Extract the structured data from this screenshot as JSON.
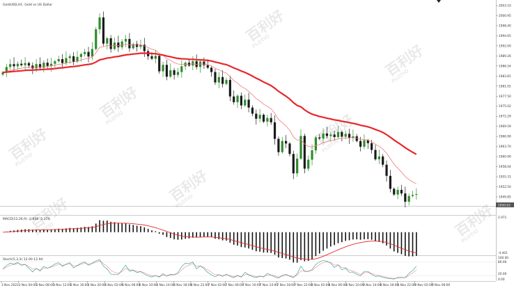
{
  "window": {
    "title": "GoldUSD,H1: Gold vs US Dollar",
    "watermark_text": "百利好",
    "watermark_logo": "PLOTIO"
  },
  "price_axis": {
    "labels": [
      "2003.10",
      "2000.95",
      "1998.40",
      "1994.65",
      "1992.00",
      "1989.26",
      "1986.54",
      "1983.81",
      "1981.05",
      "1977.50",
      "1975.02",
      "1972.29",
      "1969.59",
      "1966.90",
      "1963.70",
      "1960.90",
      "1958.04",
      "1955.31",
      "1952.50",
      "1949.85"
    ],
    "current_price": "1950.63"
  },
  "time_axis": {
    "labels": [
      "3 Nov 2023",
      "3 Nov 04:00",
      "3 Nov 08:00",
      "3 Nov 12:00",
      "3 Nov 16:00",
      "3 Nov 20:00",
      "6 Nov 02:00",
      "6 Nov 06:00",
      "6 Nov 10:00",
      "6 Nov 14:00",
      "6 Nov 18:00",
      "6 Nov 22:00",
      "7 Nov 02:00",
      "7 Nov 06:00",
      "7 Nov 10:00",
      "7 Nov 14:00",
      "7 Nov 18:00",
      "7 Nov 22:00",
      "8 Nov 02:00",
      "8 Nov 06:00",
      "8 Nov 10:00",
      "8 Nov 14:00",
      "8 Nov 18:00",
      "8 Nov 22:00",
      "9 Nov 02:00",
      "9 Nov 06:00"
    ]
  },
  "macd": {
    "label": "MACD(12,26,9) -2.838 -3.274",
    "axis_top": "2.971",
    "axis_bottom": "-4.401"
  },
  "stoch": {
    "label": "Stoch(5,3,3) 12.00 12.94",
    "axis_top": "100.00",
    "axis_80": "80.00",
    "axis_20": "20.00",
    "axis_bottom": "0.00"
  },
  "colors": {
    "bull": "#2e8b2e",
    "bear": "#1a1a1a",
    "ma_slow": "#e8262a",
    "ma_fast": "#f07a78",
    "price_marker": "#555555"
  },
  "chart_data": {
    "type": "candlestick",
    "title": "GoldUSD,H1: Gold vs US Dollar",
    "x_range": [
      "3 Nov 2023",
      "9 Nov 06:00"
    ],
    "y_range": [
      1949.85,
      2003.1
    ],
    "overlays": [
      "MA slow (thick red)",
      "MA fast (thin red)"
    ],
    "indicators": [
      "MACD(12,26,9)",
      "Stoch(5,3,3)"
    ]
  }
}
